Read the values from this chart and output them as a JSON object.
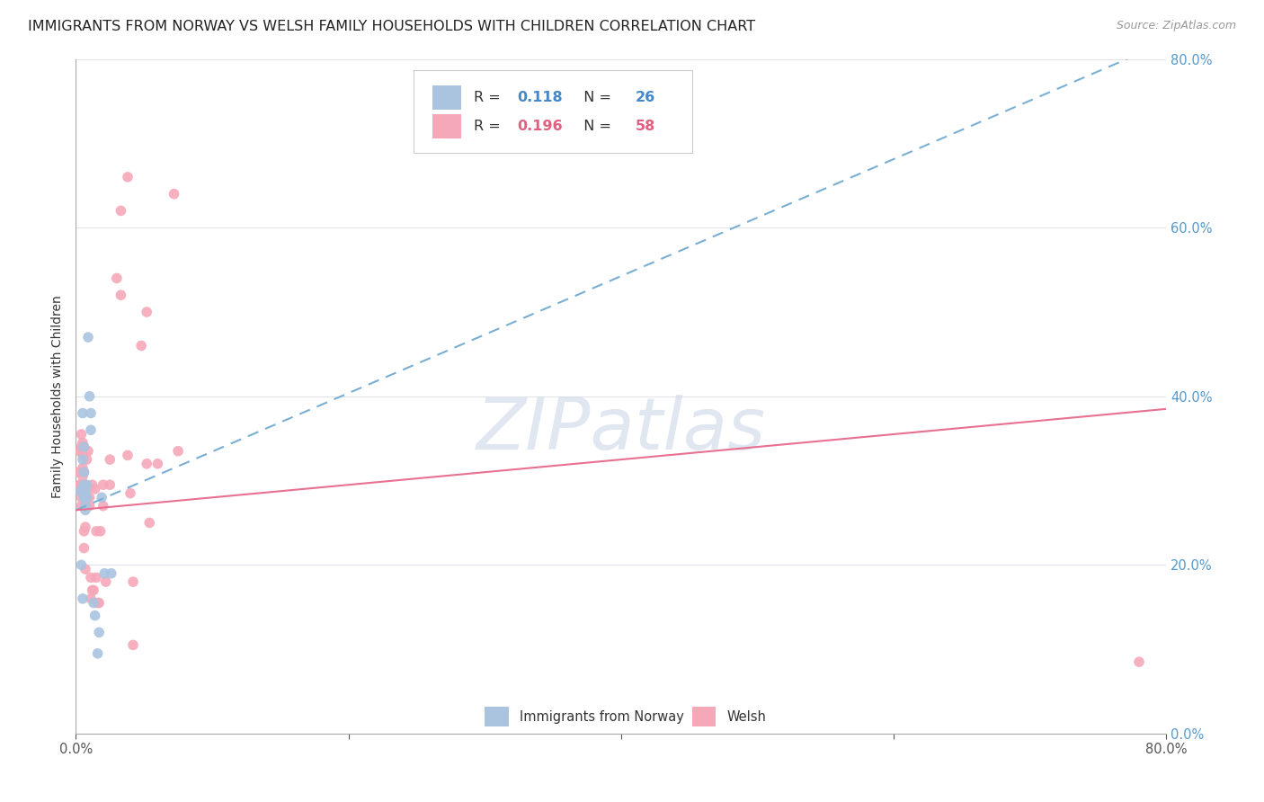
{
  "title": "IMMIGRANTS FROM NORWAY VS WELSH FAMILY HOUSEHOLDS WITH CHILDREN CORRELATION CHART",
  "source": "Source: ZipAtlas.com",
  "ylabel": "Family Households with Children",
  "x_tick_labels_outer": [
    "0.0%",
    "80.0%"
  ],
  "y_tick_labels": [
    "0.0%",
    "20.0%",
    "40.0%",
    "60.0%",
    "80.0%"
  ],
  "x_range": [
    0,
    0.8
  ],
  "y_range": [
    0,
    0.8
  ],
  "norway_color": "#aac4e0",
  "welsh_color": "#f5a8b8",
  "norway_line_color": "#7aafd4",
  "welsh_line_color": "#e87090",
  "norway_line_style": "dashed",
  "welsh_line_style": "solid",
  "watermark_text": "ZIPatlas",
  "watermark_color": "#cdd8e8",
  "watermark_alpha": 0.6,
  "legend_R_N_color_norway": "#4488cc",
  "legend_R_N_color_welsh": "#e06080",
  "norway_scatter": [
    [
      0.003,
      0.288
    ],
    [
      0.004,
      0.2
    ],
    [
      0.005,
      0.16
    ],
    [
      0.005,
      0.325
    ],
    [
      0.005,
      0.38
    ],
    [
      0.006,
      0.34
    ],
    [
      0.006,
      0.31
    ],
    [
      0.006,
      0.295
    ],
    [
      0.006,
      0.28
    ],
    [
      0.007,
      0.29
    ],
    [
      0.007,
      0.285
    ],
    [
      0.007,
      0.27
    ],
    [
      0.007,
      0.265
    ],
    [
      0.008,
      0.295
    ],
    [
      0.008,
      0.28
    ],
    [
      0.009,
      0.47
    ],
    [
      0.01,
      0.4
    ],
    [
      0.011,
      0.38
    ],
    [
      0.011,
      0.36
    ],
    [
      0.013,
      0.155
    ],
    [
      0.014,
      0.14
    ],
    [
      0.016,
      0.095
    ],
    [
      0.017,
      0.12
    ],
    [
      0.019,
      0.28
    ],
    [
      0.021,
      0.19
    ],
    [
      0.026,
      0.19
    ]
  ],
  "welsh_scatter": [
    [
      0.002,
      0.29
    ],
    [
      0.002,
      0.31
    ],
    [
      0.003,
      0.295
    ],
    [
      0.003,
      0.335
    ],
    [
      0.003,
      0.295
    ],
    [
      0.004,
      0.28
    ],
    [
      0.004,
      0.27
    ],
    [
      0.004,
      0.355
    ],
    [
      0.004,
      0.34
    ],
    [
      0.005,
      0.33
    ],
    [
      0.005,
      0.315
    ],
    [
      0.005,
      0.345
    ],
    [
      0.005,
      0.305
    ],
    [
      0.006,
      0.24
    ],
    [
      0.006,
      0.22
    ],
    [
      0.006,
      0.34
    ],
    [
      0.006,
      0.31
    ],
    [
      0.007,
      0.29
    ],
    [
      0.007,
      0.27
    ],
    [
      0.007,
      0.245
    ],
    [
      0.007,
      0.195
    ],
    [
      0.008,
      0.325
    ],
    [
      0.008,
      0.29
    ],
    [
      0.009,
      0.335
    ],
    [
      0.01,
      0.28
    ],
    [
      0.01,
      0.27
    ],
    [
      0.011,
      0.185
    ],
    [
      0.011,
      0.16
    ],
    [
      0.012,
      0.17
    ],
    [
      0.012,
      0.295
    ],
    [
      0.013,
      0.17
    ],
    [
      0.014,
      0.29
    ],
    [
      0.015,
      0.24
    ],
    [
      0.015,
      0.185
    ],
    [
      0.016,
      0.155
    ],
    [
      0.017,
      0.155
    ],
    [
      0.018,
      0.24
    ],
    [
      0.02,
      0.27
    ],
    [
      0.02,
      0.295
    ],
    [
      0.022,
      0.18
    ],
    [
      0.025,
      0.325
    ],
    [
      0.025,
      0.295
    ],
    [
      0.03,
      0.54
    ],
    [
      0.033,
      0.52
    ],
    [
      0.033,
      0.62
    ],
    [
      0.038,
      0.66
    ],
    [
      0.038,
      0.33
    ],
    [
      0.04,
      0.285
    ],
    [
      0.042,
      0.18
    ],
    [
      0.042,
      0.105
    ],
    [
      0.048,
      0.46
    ],
    [
      0.052,
      0.5
    ],
    [
      0.052,
      0.32
    ],
    [
      0.054,
      0.25
    ],
    [
      0.06,
      0.32
    ],
    [
      0.072,
      0.64
    ],
    [
      0.075,
      0.335
    ],
    [
      0.78,
      0.085
    ]
  ],
  "norway_trendline": [
    [
      0.0,
      0.265
    ],
    [
      0.8,
      0.82
    ]
  ],
  "welsh_trendline": [
    [
      0.0,
      0.265
    ],
    [
      0.8,
      0.385
    ]
  ],
  "background_color": "#ffffff",
  "grid_color": "#e0e4ea",
  "title_fontsize": 11.5,
  "axis_label_fontsize": 10,
  "tick_fontsize": 10.5,
  "right_tick_color": "#5599cc"
}
